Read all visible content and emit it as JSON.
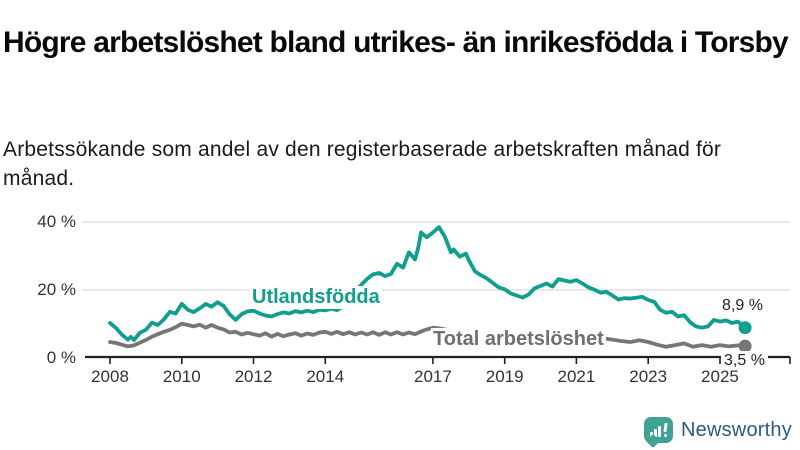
{
  "header": {
    "title": "Högre arbetslöshet bland utrikes- än inrikesfödda i Torsby",
    "subtitle": "Arbetssökande som andel av den registerbaserade arbetskraften månad för månad."
  },
  "colors": {
    "foreign": "#109e8d",
    "total": "#767676",
    "total_label": "#6f6f6f",
    "grid": "#dadada",
    "axis": "#1f1f1f",
    "tick_text": "#333333",
    "logo_teal": "#3fa294",
    "logo_text": "#2d5a7c"
  },
  "chart_data": {
    "type": "line",
    "title": "Högre arbetslöshet bland utrikes- än inrikesfödda i Torsby",
    "subtitle": "Arbetssökande som andel av den registerbaserade arbetskraften månad för månad.",
    "xlabel": "",
    "ylabel": "",
    "grid": "horizontal",
    "legend_position": "inline-labels",
    "x_axis": {
      "ticks": [
        {
          "year": 2008,
          "label": "2008"
        },
        {
          "year": 2010,
          "label": "2010"
        },
        {
          "year": 2012,
          "label": "2012"
        },
        {
          "year": 2014,
          "label": "2014"
        },
        {
          "year": 2017,
          "label": "2017"
        },
        {
          "year": 2019,
          "label": "2019"
        },
        {
          "year": 2021,
          "label": "2021"
        },
        {
          "year": 2023,
          "label": "2023"
        },
        {
          "year": 2025,
          "label": "2025"
        }
      ],
      "range": [
        2007.3,
        2026.0
      ]
    },
    "y_axis": {
      "ticks": [
        {
          "v": 0,
          "label": "0 %"
        },
        {
          "v": 20,
          "label": "20 %"
        },
        {
          "v": 40,
          "label": "40 %"
        }
      ],
      "range": [
        0,
        40
      ]
    },
    "series": [
      {
        "name": "Utlandsfödda",
        "color_key": "foreign",
        "end_label": "8,9 %",
        "end_value": 8.9,
        "points": [
          [
            2008.0,
            10.3
          ],
          [
            2008.17,
            8.8
          ],
          [
            2008.33,
            6.9
          ],
          [
            2008.5,
            5.4
          ],
          [
            2008.58,
            6.2
          ],
          [
            2008.67,
            5.3
          ],
          [
            2008.83,
            7.4
          ],
          [
            2009.0,
            8.3
          ],
          [
            2009.17,
            10.4
          ],
          [
            2009.33,
            9.7
          ],
          [
            2009.5,
            11.3
          ],
          [
            2009.67,
            13.6
          ],
          [
            2009.83,
            13.1
          ],
          [
            2010.0,
            15.9
          ],
          [
            2010.17,
            14.2
          ],
          [
            2010.33,
            13.5
          ],
          [
            2010.5,
            14.6
          ],
          [
            2010.67,
            15.9
          ],
          [
            2010.83,
            15.1
          ],
          [
            2011.0,
            16.4
          ],
          [
            2011.17,
            15.3
          ],
          [
            2011.33,
            12.9
          ],
          [
            2011.5,
            11.2
          ],
          [
            2011.67,
            12.9
          ],
          [
            2011.83,
            13.7
          ],
          [
            2012.0,
            13.9
          ],
          [
            2012.17,
            13.1
          ],
          [
            2012.33,
            12.5
          ],
          [
            2012.5,
            12.2
          ],
          [
            2012.67,
            12.9
          ],
          [
            2012.83,
            13.4
          ],
          [
            2013.0,
            13.1
          ],
          [
            2013.17,
            13.8
          ],
          [
            2013.33,
            13.4
          ],
          [
            2013.5,
            13.9
          ],
          [
            2013.67,
            13.5
          ],
          [
            2013.83,
            14.2
          ],
          [
            2014.0,
            14.0
          ],
          [
            2014.17,
            14.5
          ],
          [
            2014.33,
            14.1
          ],
          [
            2014.5,
            15.2
          ],
          [
            2014.67,
            17.5
          ],
          [
            2014.83,
            19.6
          ],
          [
            2015.0,
            21.5
          ],
          [
            2015.17,
            23.3
          ],
          [
            2015.33,
            24.6
          ],
          [
            2015.5,
            25.0
          ],
          [
            2015.67,
            24.1
          ],
          [
            2015.83,
            24.7
          ],
          [
            2016.0,
            27.7
          ],
          [
            2016.17,
            26.6
          ],
          [
            2016.33,
            31.1
          ],
          [
            2016.5,
            29.0
          ],
          [
            2016.58,
            32.0
          ],
          [
            2016.67,
            36.9
          ],
          [
            2016.83,
            35.5
          ],
          [
            2017.0,
            36.9
          ],
          [
            2017.17,
            38.5
          ],
          [
            2017.33,
            35.7
          ],
          [
            2017.5,
            31.1
          ],
          [
            2017.58,
            31.9
          ],
          [
            2017.75,
            29.8
          ],
          [
            2017.92,
            30.7
          ],
          [
            2018.0,
            28.8
          ],
          [
            2018.17,
            25.5
          ],
          [
            2018.33,
            24.4
          ],
          [
            2018.5,
            23.4
          ],
          [
            2018.67,
            22.1
          ],
          [
            2018.83,
            20.8
          ],
          [
            2019.0,
            20.2
          ],
          [
            2019.17,
            19.0
          ],
          [
            2019.33,
            18.4
          ],
          [
            2019.5,
            17.8
          ],
          [
            2019.67,
            18.7
          ],
          [
            2019.83,
            20.5
          ],
          [
            2020.0,
            21.2
          ],
          [
            2020.17,
            21.9
          ],
          [
            2020.33,
            21.0
          ],
          [
            2020.5,
            23.2
          ],
          [
            2020.67,
            22.8
          ],
          [
            2020.83,
            22.4
          ],
          [
            2021.0,
            22.9
          ],
          [
            2021.17,
            21.9
          ],
          [
            2021.33,
            20.8
          ],
          [
            2021.5,
            20.1
          ],
          [
            2021.67,
            19.2
          ],
          [
            2021.83,
            19.5
          ],
          [
            2022.0,
            18.4
          ],
          [
            2022.17,
            17.2
          ],
          [
            2022.33,
            17.6
          ],
          [
            2022.5,
            17.5
          ],
          [
            2022.67,
            17.7
          ],
          [
            2022.83,
            18.0
          ],
          [
            2023.0,
            17.1
          ],
          [
            2023.17,
            16.5
          ],
          [
            2023.33,
            14.2
          ],
          [
            2023.5,
            13.3
          ],
          [
            2023.67,
            13.6
          ],
          [
            2023.83,
            12.2
          ],
          [
            2024.0,
            12.6
          ],
          [
            2024.17,
            10.5
          ],
          [
            2024.33,
            9.3
          ],
          [
            2024.5,
            8.9
          ],
          [
            2024.67,
            9.3
          ],
          [
            2024.83,
            11.2
          ],
          [
            2025.0,
            10.7
          ],
          [
            2025.17,
            11.1
          ],
          [
            2025.33,
            10.3
          ],
          [
            2025.5,
            10.7
          ],
          [
            2025.7,
            8.9
          ]
        ]
      },
      {
        "name": "Total arbetslöshet",
        "color_key": "total",
        "end_label": "3,5 %",
        "end_value": 3.5,
        "points": [
          [
            2008.0,
            4.7
          ],
          [
            2008.17,
            4.4
          ],
          [
            2008.33,
            3.9
          ],
          [
            2008.5,
            3.4
          ],
          [
            2008.67,
            3.7
          ],
          [
            2008.83,
            4.5
          ],
          [
            2009.0,
            5.3
          ],
          [
            2009.17,
            6.3
          ],
          [
            2009.33,
            7.0
          ],
          [
            2009.5,
            7.7
          ],
          [
            2009.67,
            8.3
          ],
          [
            2009.83,
            9.1
          ],
          [
            2010.0,
            10.1
          ],
          [
            2010.17,
            9.7
          ],
          [
            2010.33,
            9.3
          ],
          [
            2010.5,
            9.8
          ],
          [
            2010.67,
            8.9
          ],
          [
            2010.83,
            9.7
          ],
          [
            2011.0,
            8.9
          ],
          [
            2011.17,
            8.4
          ],
          [
            2011.33,
            7.5
          ],
          [
            2011.5,
            7.7
          ],
          [
            2011.67,
            6.9
          ],
          [
            2011.83,
            7.4
          ],
          [
            2012.0,
            7.0
          ],
          [
            2012.17,
            6.6
          ],
          [
            2012.33,
            7.3
          ],
          [
            2012.5,
            6.3
          ],
          [
            2012.67,
            7.1
          ],
          [
            2012.83,
            6.4
          ],
          [
            2013.0,
            6.9
          ],
          [
            2013.17,
            7.3
          ],
          [
            2013.33,
            6.6
          ],
          [
            2013.5,
            7.2
          ],
          [
            2013.67,
            6.8
          ],
          [
            2013.83,
            7.5
          ],
          [
            2014.0,
            7.7
          ],
          [
            2014.17,
            7.1
          ],
          [
            2014.33,
            7.7
          ],
          [
            2014.5,
            7.0
          ],
          [
            2014.67,
            7.6
          ],
          [
            2014.83,
            6.9
          ],
          [
            2015.0,
            7.5
          ],
          [
            2015.17,
            6.9
          ],
          [
            2015.33,
            7.6
          ],
          [
            2015.5,
            6.8
          ],
          [
            2015.67,
            7.6
          ],
          [
            2015.83,
            6.9
          ],
          [
            2016.0,
            7.6
          ],
          [
            2016.17,
            6.9
          ],
          [
            2016.33,
            7.5
          ],
          [
            2016.5,
            7.0
          ],
          [
            2016.67,
            7.8
          ],
          [
            2016.83,
            8.4
          ],
          [
            2017.0,
            8.9
          ],
          [
            2017.17,
            8.7
          ],
          [
            2017.33,
            8.4
          ],
          [
            2017.5,
            8.1
          ],
          [
            2017.75,
            7.7
          ],
          [
            2018.0,
            7.3
          ],
          [
            2018.25,
            6.9
          ],
          [
            2018.5,
            6.6
          ],
          [
            2018.75,
            6.3
          ],
          [
            2019.0,
            6.1
          ],
          [
            2019.25,
            5.9
          ],
          [
            2019.5,
            5.8
          ],
          [
            2019.75,
            6.1
          ],
          [
            2020.0,
            6.6
          ],
          [
            2020.25,
            7.4
          ],
          [
            2020.5,
            7.7
          ],
          [
            2020.75,
            7.5
          ],
          [
            2021.0,
            7.2
          ],
          [
            2021.25,
            6.7
          ],
          [
            2021.5,
            6.2
          ],
          [
            2021.75,
            5.8
          ],
          [
            2022.0,
            5.4
          ],
          [
            2022.25,
            5.0
          ],
          [
            2022.5,
            4.7
          ],
          [
            2022.75,
            5.2
          ],
          [
            2023.0,
            4.7
          ],
          [
            2023.25,
            3.9
          ],
          [
            2023.5,
            3.3
          ],
          [
            2023.75,
            3.8
          ],
          [
            2024.0,
            4.3
          ],
          [
            2024.25,
            3.3
          ],
          [
            2024.5,
            3.8
          ],
          [
            2024.75,
            3.3
          ],
          [
            2025.0,
            3.8
          ],
          [
            2025.25,
            3.4
          ],
          [
            2025.5,
            3.7
          ],
          [
            2025.7,
            3.5
          ]
        ]
      }
    ]
  },
  "logo": {
    "text": "Newsworthy"
  }
}
